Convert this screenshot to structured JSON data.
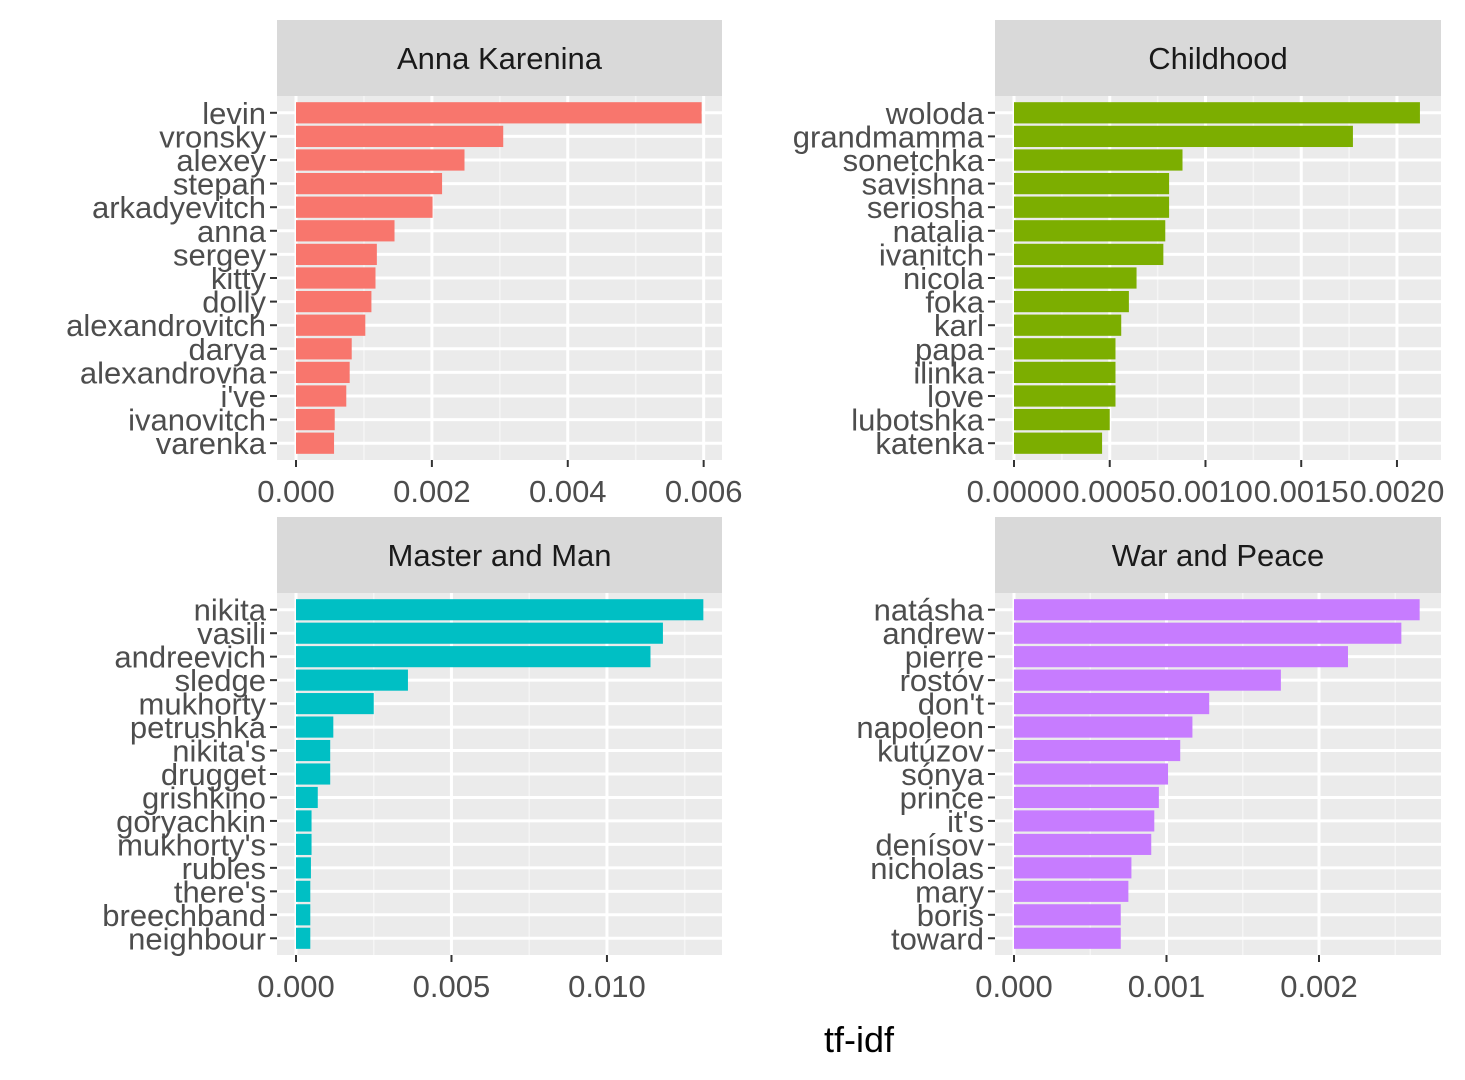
{
  "chart_data": [
    {
      "type": "bar",
      "orientation": "horizontal",
      "facet_title": "Anna Karenina",
      "color": "#F8766D",
      "categories": [
        "levin",
        "vronsky",
        "alexey",
        "stepan",
        "arkadyevitch",
        "anna",
        "sergey",
        "kitty",
        "dolly",
        "alexandrovitch",
        "darya",
        "alexandrovna",
        "i've",
        "ivanovitch",
        "varenka"
      ],
      "values": [
        0.00597,
        0.00305,
        0.00248,
        0.00215,
        0.00201,
        0.00145,
        0.00119,
        0.00117,
        0.00111,
        0.00102,
        0.00082,
        0.00079,
        0.00074,
        0.00057,
        0.00056
      ],
      "xlim": [
        0,
        0.00627
      ],
      "ticks": [
        0,
        0.002,
        0.004,
        0.006
      ],
      "tick_labels": [
        "0.000",
        "0.002",
        "0.004",
        "0.006"
      ],
      "grid": true
    },
    {
      "type": "bar",
      "orientation": "horizontal",
      "facet_title": "Childhood",
      "color": "#7CAE00",
      "categories": [
        "woloda",
        "grandmamma",
        "sonetchka",
        "savishna",
        "seriosha",
        "natalia",
        "ivanitch",
        "nicola",
        "foka",
        "karl",
        "papa",
        "ilinka",
        "love",
        "lubotshka",
        "katenka"
      ],
      "values": [
        0.00212,
        0.00177,
        0.00088,
        0.00081,
        0.00081,
        0.00079,
        0.00078,
        0.00064,
        0.0006,
        0.00056,
        0.00053,
        0.00053,
        0.00053,
        0.0005,
        0.00046
      ],
      "xlim": [
        0,
        0.00223
      ],
      "ticks": [
        0,
        0.0005,
        0.001,
        0.0015,
        0.002
      ],
      "tick_labels": [
        "0.0000",
        "0.0005",
        "0.0010",
        "0.0015",
        "0.0020"
      ],
      "grid": true
    },
    {
      "type": "bar",
      "orientation": "horizontal",
      "facet_title": "Master and Man",
      "color": "#00BFC4",
      "categories": [
        "nikita",
        "vasili",
        "andreevich",
        "sledge",
        "mukhorty",
        "petrushka",
        "nikita's",
        "drugget",
        "grishkino",
        "goryachkin",
        "mukhorty's",
        "rubles",
        "there's",
        "breechband",
        "neighbour"
      ],
      "values": [
        0.0131,
        0.0118,
        0.0114,
        0.0036,
        0.0025,
        0.0012,
        0.0011,
        0.0011,
        0.0007,
        0.0005,
        0.0005,
        0.00048,
        0.00046,
        0.00046,
        0.00046
      ],
      "xlim": [
        0,
        0.0137
      ],
      "ticks": [
        0,
        0.005,
        0.01
      ],
      "tick_labels": [
        "0.000",
        "0.005",
        "0.010"
      ],
      "grid": true
    },
    {
      "type": "bar",
      "orientation": "horizontal",
      "facet_title": "War and Peace",
      "color": "#C77CFF",
      "categories": [
        "natásha",
        "andrew",
        "pierre",
        "rostóv",
        "don't",
        "napoleon",
        "kutúzov",
        "sónya",
        "prince",
        "it's",
        "denísov",
        "nicholas",
        "mary",
        "boris",
        "toward"
      ],
      "values": [
        0.00266,
        0.00254,
        0.00219,
        0.00175,
        0.00128,
        0.00117,
        0.00109,
        0.00101,
        0.00095,
        0.00092,
        0.0009,
        0.00077,
        0.00075,
        0.0007,
        0.0007
      ],
      "xlim": [
        0,
        0.0028
      ],
      "ticks": [
        0,
        0.001,
        0.002
      ],
      "tick_labels": [
        "0.000",
        "0.001",
        "0.002"
      ],
      "grid": true
    }
  ],
  "x_axis_title": "tf-idf"
}
